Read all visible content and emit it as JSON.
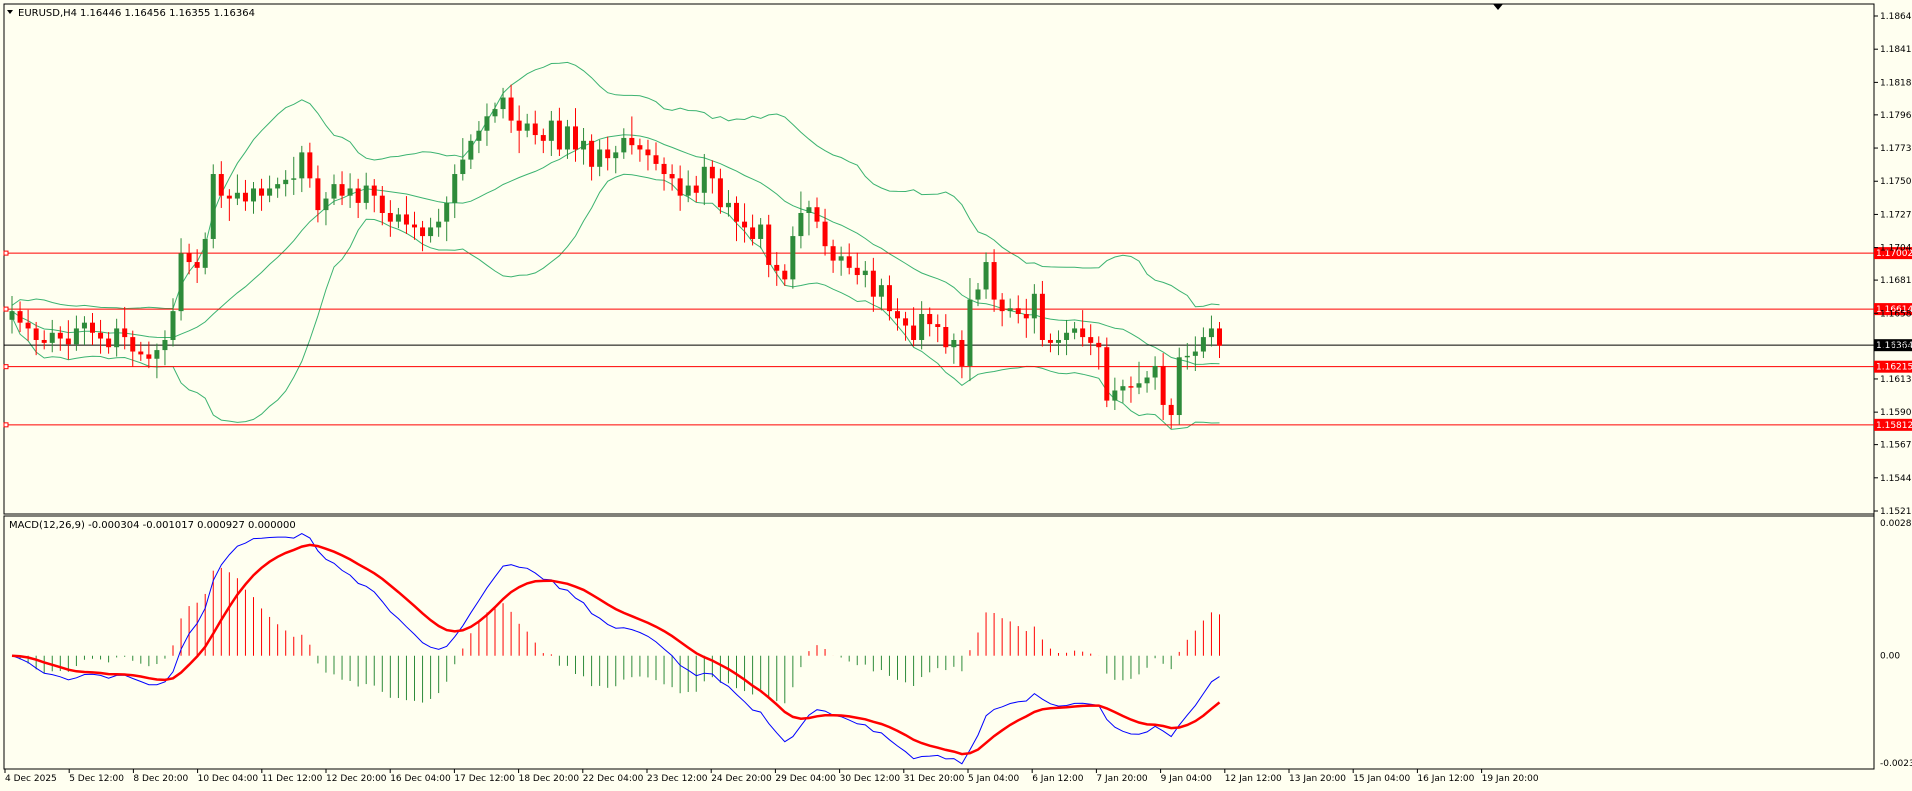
{
  "header": {
    "title": "EURUSD,H4",
    "ohlc": "1.16446 1.16456 1.16355 1.16364"
  },
  "macd": {
    "label": "MACD(12,26,9) -0.000304 -0.001017 0.000927 0.000000",
    "axis_labels": [
      "0.002862",
      "0.00",
      "-0.002331"
    ]
  },
  "price_axis": {
    "ticks": [
      "1.18645",
      "1.18415",
      "1.18185",
      "1.17960",
      "1.17730",
      "1.17500",
      "1.17270",
      "1.17040",
      "1.16815",
      "1.16585",
      "1.16355",
      "1.16130",
      "1.15900",
      "1.15675",
      "1.15445",
      "1.15215"
    ],
    "levels": [
      {
        "value": 1.17002,
        "label": "1.17002",
        "color": "#ff0000"
      },
      {
        "value": 1.16614,
        "label": "1.16614",
        "color": "#ff0000"
      },
      {
        "value": 1.16364,
        "label": "1.16364",
        "color": "#000000"
      },
      {
        "value": 1.16215,
        "label": "1.16215",
        "color": "#ff0000"
      },
      {
        "value": 1.15812,
        "label": "1.15812",
        "color": "#ff0000"
      }
    ]
  },
  "time_axis": {
    "labels": [
      "4 Dec 2025",
      "5 Dec 12:00",
      "8 Dec 20:00",
      "10 Dec 04:00",
      "11 Dec 12:00",
      "12 Dec 20:00",
      "16 Dec 04:00",
      "17 Dec 12:00",
      "18 Dec 20:00",
      "22 Dec 04:00",
      "23 Dec 12:00",
      "24 Dec 20:00",
      "29 Dec 04:00",
      "30 Dec 12:00",
      "31 Dec 20:00",
      "5 Jan 04:00",
      "6 Jan 12:00",
      "7 Jan 20:00",
      "9 Jan 04:00",
      "12 Jan 12:00",
      "13 Jan 20:00",
      "15 Jan 04:00",
      "16 Jan 12:00",
      "19 Jan 20:00"
    ]
  },
  "colors": {
    "background": "#fffff0",
    "bull": "#2e8b3a",
    "bear": "#ff0000",
    "bands": "#3cb371",
    "macd_line": "#0000ff",
    "signal_line": "#ff0000",
    "level_line": "#ff0000"
  },
  "chart_data": {
    "type": "candlestick",
    "symbol": "EURUSD",
    "timeframe": "H4",
    "ylim": [
      1.15215,
      1.18645
    ],
    "last_price": 1.16364,
    "closes": [
      1.166,
      1.1652,
      1.1648,
      1.164,
      1.1638,
      1.1645,
      1.1641,
      1.1637,
      1.1648,
      1.1652,
      1.1645,
      1.1641,
      1.1635,
      1.1648,
      1.1642,
      1.1632,
      1.163,
      1.1627,
      1.1633,
      1.164,
      1.166,
      1.17,
      1.1694,
      1.169,
      1.171,
      1.1755,
      1.174,
      1.1738,
      1.1742,
      1.1736,
      1.1745,
      1.174,
      1.1745,
      1.1748,
      1.1751,
      1.1752,
      1.177,
      1.1752,
      1.173,
      1.1738,
      1.1748,
      1.174,
      1.1745,
      1.1735,
      1.1747,
      1.174,
      1.1728,
      1.1722,
      1.1727,
      1.172,
      1.1718,
      1.1712,
      1.1718,
      1.1722,
      1.1735,
      1.1755,
      1.1765,
      1.1778,
      1.1785,
      1.1795,
      1.18,
      1.1808,
      1.1792,
      1.1785,
      1.179,
      1.1782,
      1.1778,
      1.1792,
      1.1772,
      1.1788,
      1.1772,
      1.1778,
      1.176,
      1.1772,
      1.1766,
      1.177,
      1.178,
      1.1775,
      1.1772,
      1.1768,
      1.1762,
      1.1755,
      1.1752,
      1.174,
      1.1747,
      1.1742,
      1.176,
      1.1752,
      1.1732,
      1.1735,
      1.1722,
      1.1718,
      1.171,
      1.172,
      1.1692,
      1.1688,
      1.1682,
      1.1712,
      1.1728,
      1.1732,
      1.1722,
      1.1705,
      1.1695,
      1.1698,
      1.169,
      1.1685,
      1.1688,
      1.167,
      1.1678,
      1.166,
      1.1655,
      1.165,
      1.164,
      1.1658,
      1.1651,
      1.1649,
      1.1635,
      1.164,
      1.1622,
      1.1668,
      1.1675,
      1.1694,
      1.1668,
      1.166,
      1.1662,
      1.1658,
      1.1655,
      1.1672,
      1.164,
      1.1638,
      1.164,
      1.1645,
      1.1648,
      1.1642,
      1.1638,
      1.1635,
      1.1598,
      1.1605,
      1.1608,
      1.1607,
      1.161,
      1.1614,
      1.1622,
      1.1595,
      1.1588,
      1.1628,
      1.1629,
      1.1632,
      1.1642,
      1.1648,
      1.1636
    ]
  }
}
